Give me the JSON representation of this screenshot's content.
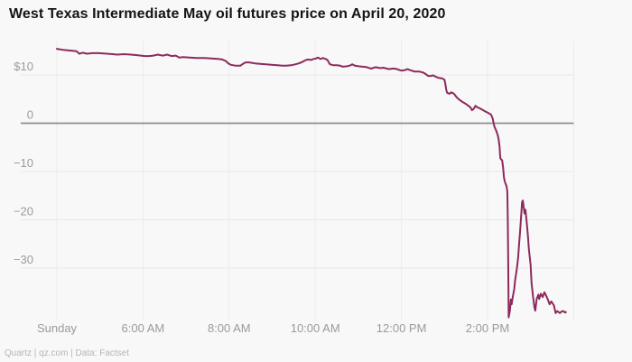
{
  "colors": {
    "background": "#f8f8f8",
    "line": "#8c2a5c",
    "zero_line": "#8f8f8f",
    "grid": "#e9e9e9",
    "grid_vertical": "#ececec",
    "axis_text": "#9b9b9b",
    "title_text": "#141414",
    "source_text": "#b5b5b5"
  },
  "chart_data": {
    "type": "line",
    "title": "West Texas Intermediate May oil futures price on April 20, 2020",
    "source": "Quartz | qz.com | Data: Factset",
    "legend": "none",
    "grid": "faint horizontal and vertical gridlines, zero line emphasized in darker gray",
    "xlabel": "",
    "ylabel": "price in USD (y tick labels, $ shown on top tick only)",
    "x_ticks": [
      "Sunday",
      "6:00 AM",
      "8:00 AM",
      "10:00 AM",
      "12:00 PM",
      "2:00 PM"
    ],
    "x_unit": "tick index: Sunday open = 0, then 2-hour steps (6:00 AM = 1 ... 2:00 PM = 5, unlabeled 4:00 PM gridline = 6)",
    "y_ticks": [
      {
        "value": 10,
        "label": "$10"
      },
      {
        "value": 0,
        "label": "0"
      },
      {
        "value": -10,
        "label": "−10"
      },
      {
        "value": -20,
        "label": "−20"
      },
      {
        "value": -30,
        "label": "−30"
      }
    ],
    "ylim": [
      -42,
      16
    ],
    "series": [
      {
        "name": "WTI May 2020 futures price",
        "points": [
          [
            0.0,
            15.4
          ],
          [
            0.07,
            15.2
          ],
          [
            0.18,
            15.0
          ],
          [
            0.23,
            14.9
          ],
          [
            0.26,
            14.4
          ],
          [
            0.3,
            14.6
          ],
          [
            0.35,
            14.4
          ],
          [
            0.41,
            14.5
          ],
          [
            0.49,
            14.5
          ],
          [
            0.58,
            14.4
          ],
          [
            0.65,
            14.3
          ],
          [
            0.7,
            14.2
          ],
          [
            0.78,
            14.3
          ],
          [
            0.86,
            14.2
          ],
          [
            0.93,
            14.1
          ],
          [
            1.02,
            13.9
          ],
          [
            1.07,
            13.9
          ],
          [
            1.12,
            14.0
          ],
          [
            1.17,
            14.2
          ],
          [
            1.23,
            14.0
          ],
          [
            1.28,
            14.2
          ],
          [
            1.33,
            13.9
          ],
          [
            1.38,
            14.0
          ],
          [
            1.42,
            13.6
          ],
          [
            1.47,
            13.7
          ],
          [
            1.54,
            13.6
          ],
          [
            1.62,
            13.5
          ],
          [
            1.71,
            13.5
          ],
          [
            1.79,
            13.4
          ],
          [
            1.87,
            13.3
          ],
          [
            1.92,
            13.2
          ],
          [
            1.96,
            12.9
          ],
          [
            1.99,
            12.4
          ],
          [
            2.02,
            12.1
          ],
          [
            2.08,
            11.9
          ],
          [
            2.13,
            11.9
          ],
          [
            2.16,
            12.3
          ],
          [
            2.19,
            12.6
          ],
          [
            2.23,
            12.6
          ],
          [
            2.3,
            12.4
          ],
          [
            2.36,
            12.3
          ],
          [
            2.43,
            12.2
          ],
          [
            2.49,
            12.1
          ],
          [
            2.56,
            12.0
          ],
          [
            2.62,
            11.9
          ],
          [
            2.66,
            11.9
          ],
          [
            2.72,
            12.0
          ],
          [
            2.77,
            12.2
          ],
          [
            2.81,
            12.4
          ],
          [
            2.85,
            12.7
          ],
          [
            2.88,
            13.0
          ],
          [
            2.91,
            13.2
          ],
          [
            2.95,
            13.1
          ],
          [
            2.98,
            13.3
          ],
          [
            3.01,
            13.4
          ],
          [
            3.03,
            13.6
          ],
          [
            3.06,
            13.3
          ],
          [
            3.09,
            13.5
          ],
          [
            3.12,
            13.3
          ],
          [
            3.14,
            13.1
          ],
          [
            3.17,
            12.2
          ],
          [
            3.21,
            12.0
          ],
          [
            3.25,
            12.0
          ],
          [
            3.29,
            11.9
          ],
          [
            3.32,
            11.7
          ],
          [
            3.37,
            11.8
          ],
          [
            3.41,
            12.0
          ],
          [
            3.43,
            12.2
          ],
          [
            3.46,
            11.9
          ],
          [
            3.5,
            11.8
          ],
          [
            3.55,
            11.7
          ],
          [
            3.6,
            11.6
          ],
          [
            3.63,
            11.4
          ],
          [
            3.65,
            11.3
          ],
          [
            3.68,
            11.5
          ],
          [
            3.7,
            11.6
          ],
          [
            3.73,
            11.5
          ],
          [
            3.76,
            11.4
          ],
          [
            3.79,
            11.5
          ],
          [
            3.83,
            11.3
          ],
          [
            3.86,
            11.2
          ],
          [
            3.89,
            11.3
          ],
          [
            3.92,
            11.3
          ],
          [
            3.95,
            11.2
          ],
          [
            3.98,
            11.0
          ],
          [
            4.0,
            10.9
          ],
          [
            4.04,
            11.0
          ],
          [
            4.07,
            11.2
          ],
          [
            4.1,
            11.0
          ],
          [
            4.12,
            10.9
          ],
          [
            4.15,
            10.7
          ],
          [
            4.18,
            10.7
          ],
          [
            4.21,
            10.7
          ],
          [
            4.25,
            10.5
          ],
          [
            4.28,
            10.2
          ],
          [
            4.31,
            9.8
          ],
          [
            4.34,
            9.8
          ],
          [
            4.37,
            9.9
          ],
          [
            4.4,
            9.6
          ],
          [
            4.43,
            9.4
          ],
          [
            4.47,
            9.3
          ],
          [
            4.5,
            9.0
          ],
          [
            4.51,
            8.1
          ],
          [
            4.52,
            7.0
          ],
          [
            4.53,
            6.3
          ],
          [
            4.56,
            6.1
          ],
          [
            4.58,
            6.4
          ],
          [
            4.61,
            6.1
          ],
          [
            4.64,
            5.4
          ],
          [
            4.67,
            4.9
          ],
          [
            4.71,
            4.4
          ],
          [
            4.74,
            4.1
          ],
          [
            4.77,
            3.7
          ],
          [
            4.8,
            3.3
          ],
          [
            4.82,
            2.7
          ],
          [
            4.84,
            3.0
          ],
          [
            4.86,
            3.6
          ],
          [
            4.88,
            3.3
          ],
          [
            4.92,
            3.0
          ],
          [
            4.95,
            2.7
          ],
          [
            4.98,
            2.4
          ],
          [
            5.01,
            2.1
          ],
          [
            5.04,
            1.8
          ],
          [
            5.06,
            1.0
          ],
          [
            5.07,
            0.0
          ],
          [
            5.08,
            -0.7
          ],
          [
            5.1,
            -1.5
          ],
          [
            5.12,
            -2.5
          ],
          [
            5.13,
            -3.5
          ],
          [
            5.14,
            -5.0
          ],
          [
            5.145,
            -6.4
          ],
          [
            5.15,
            -7.3
          ],
          [
            5.17,
            -7.7
          ],
          [
            5.18,
            -9.1
          ],
          [
            5.19,
            -11.1
          ],
          [
            5.2,
            -12.1
          ],
          [
            5.22,
            -13.0
          ],
          [
            5.23,
            -14.1
          ],
          [
            5.235,
            -19.3
          ],
          [
            5.24,
            -28.7
          ],
          [
            5.245,
            -40.2
          ],
          [
            5.26,
            -38.8
          ],
          [
            5.27,
            -36.5
          ],
          [
            5.28,
            -37.5
          ],
          [
            5.29,
            -36.2
          ],
          [
            5.31,
            -34.3
          ],
          [
            5.32,
            -32.6
          ],
          [
            5.34,
            -30.2
          ],
          [
            5.355,
            -27.8
          ],
          [
            5.366,
            -25.1
          ],
          [
            5.377,
            -22.5
          ],
          [
            5.39,
            -19.3
          ],
          [
            5.4,
            -16.4
          ],
          [
            5.41,
            -16.0
          ],
          [
            5.42,
            -17.5
          ],
          [
            5.43,
            -18.7
          ],
          [
            5.44,
            -17.9
          ],
          [
            5.455,
            -20.5
          ],
          [
            5.47,
            -23.5
          ],
          [
            5.48,
            -26.1
          ],
          [
            5.5,
            -29.3
          ],
          [
            5.51,
            -33.0
          ],
          [
            5.53,
            -36.2
          ],
          [
            5.545,
            -38.2
          ],
          [
            5.555,
            -38.8
          ],
          [
            5.57,
            -36.4
          ],
          [
            5.59,
            -35.5
          ],
          [
            5.6,
            -36.4
          ],
          [
            5.62,
            -35.3
          ],
          [
            5.64,
            -36.0
          ],
          [
            5.66,
            -35.0
          ],
          [
            5.68,
            -35.7
          ],
          [
            5.7,
            -36.5
          ],
          [
            5.72,
            -37.5
          ],
          [
            5.74,
            -36.9
          ],
          [
            5.77,
            -37.7
          ],
          [
            5.79,
            -39.3
          ],
          [
            5.81,
            -38.9
          ],
          [
            5.84,
            -39.3
          ],
          [
            5.86,
            -39.0
          ],
          [
            5.88,
            -38.9
          ],
          [
            5.9,
            -39.2
          ],
          [
            5.91,
            -39.1
          ]
        ]
      }
    ]
  }
}
